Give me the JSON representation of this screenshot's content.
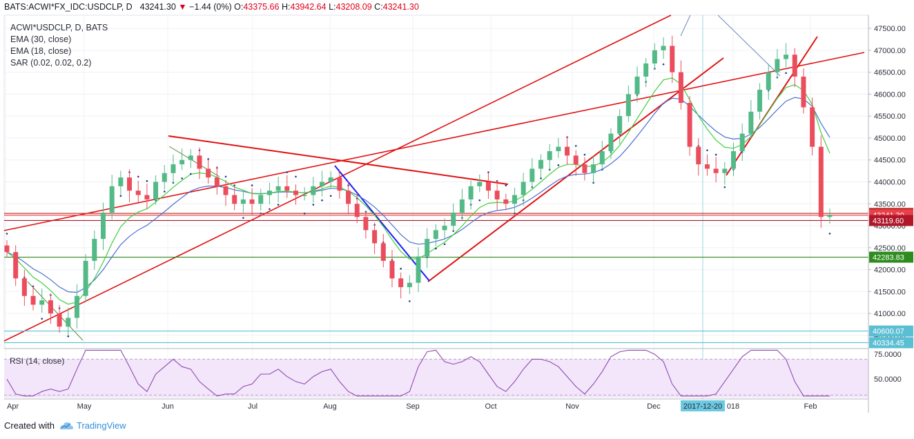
{
  "header": {
    "symbol": "BATS:ACWI*FX_IDC:USDCLP, D",
    "last": "43241.30",
    "change": "−1.44 (0%)",
    "o_label": "O:",
    "o_value": "43375.66",
    "h_label": "H:",
    "h_value": "43942.64",
    "l_label": "L:",
    "l_value": "43208.09",
    "c_label": "C:",
    "c_value": "43241.30"
  },
  "legend": {
    "line1": "ACWI*USDCLP, D, BATS",
    "line2": "EMA (30, close)",
    "line3": "EMA (18, close)",
    "line4": "SAR (0.02, 0.02, 0.2)"
  },
  "rsi": {
    "label": "RSI (14, close)"
  },
  "footer": {
    "created_with": "Created with",
    "brand": "TradingView"
  },
  "chart_data": {
    "type": "candlestick",
    "x_ticks": [
      "Apr",
      "May",
      "Jun",
      "Jul",
      "Aug",
      "Sep",
      "Oct",
      "Nov",
      "Dec",
      "2017-12-20",
      "018",
      "Feb"
    ],
    "y_ticks": [
      "47500.00",
      "47000.00",
      "46500.00",
      "46000.00",
      "45500.00",
      "45000.00",
      "44500.00",
      "44000.00",
      "43500.00",
      "43000.00",
      "42500.00",
      "42000.00",
      "41500.00",
      "41000.00",
      "40500.00"
    ],
    "y_range": [
      40200,
      47800
    ],
    "price_tags": [
      {
        "label": "43282.27",
        "value": 43282.27,
        "color": "#c0392b"
      },
      {
        "label": "43241.30",
        "value": 43241.3,
        "color": "#e8404c"
      },
      {
        "label": "43119.60",
        "value": 43119.6,
        "color": "#b0182a"
      },
      {
        "label": "42283.83",
        "value": 42283.83,
        "color": "#2e8b1e"
      },
      {
        "label": "40600.07",
        "value": 40600.07,
        "color": "#5bbfd3"
      },
      {
        "label": "40334.45",
        "value": 40334.45,
        "color": "#5bbfd3"
      }
    ],
    "rsi_ticks": [
      "75.0000",
      "50.0000"
    ],
    "rsi_range": [
      30,
      80
    ],
    "highlight_date": "2017-12-20",
    "colors": {
      "up": "#53b987",
      "down": "#eb4d5c",
      "ema30": "#4a6fd1",
      "ema18": "#3ecf3e",
      "sar": "#1a3a8a",
      "trend": "#e01010",
      "rsi": "#8e4ab0"
    },
    "series": [
      {
        "name": "ACWI*USDCLP",
        "values": [
          42400,
          41800,
          41400,
          41200,
          41300,
          41000,
          40700,
          40900,
          41400,
          42200,
          42700,
          43300,
          43900,
          44100,
          43800,
          43700,
          43600,
          44000,
          44200,
          44400,
          44500,
          44600,
          44300,
          44100,
          43900,
          43700,
          43500,
          43600,
          43500,
          43700,
          43800,
          43900,
          43800,
          43700,
          43700,
          43900,
          44000,
          44100,
          43800,
          43500,
          43200,
          42900,
          42600,
          42200,
          41800,
          41600,
          41700,
          42300,
          42700,
          42900,
          43000,
          43300,
          43600,
          43900,
          44000,
          43800,
          43600,
          43500,
          43700,
          44000,
          44300,
          44500,
          44700,
          44800,
          44600,
          44400,
          44200,
          44400,
          44700,
          45100,
          45500,
          46000,
          46400,
          46700,
          47000,
          47100,
          46500,
          45800,
          44800,
          44400,
          44300,
          44200,
          44300,
          44700,
          45100,
          45600,
          46100,
          46500,
          46800,
          46900,
          46400,
          45700,
          44800,
          43200,
          43241.3
        ]
      }
    ]
  }
}
